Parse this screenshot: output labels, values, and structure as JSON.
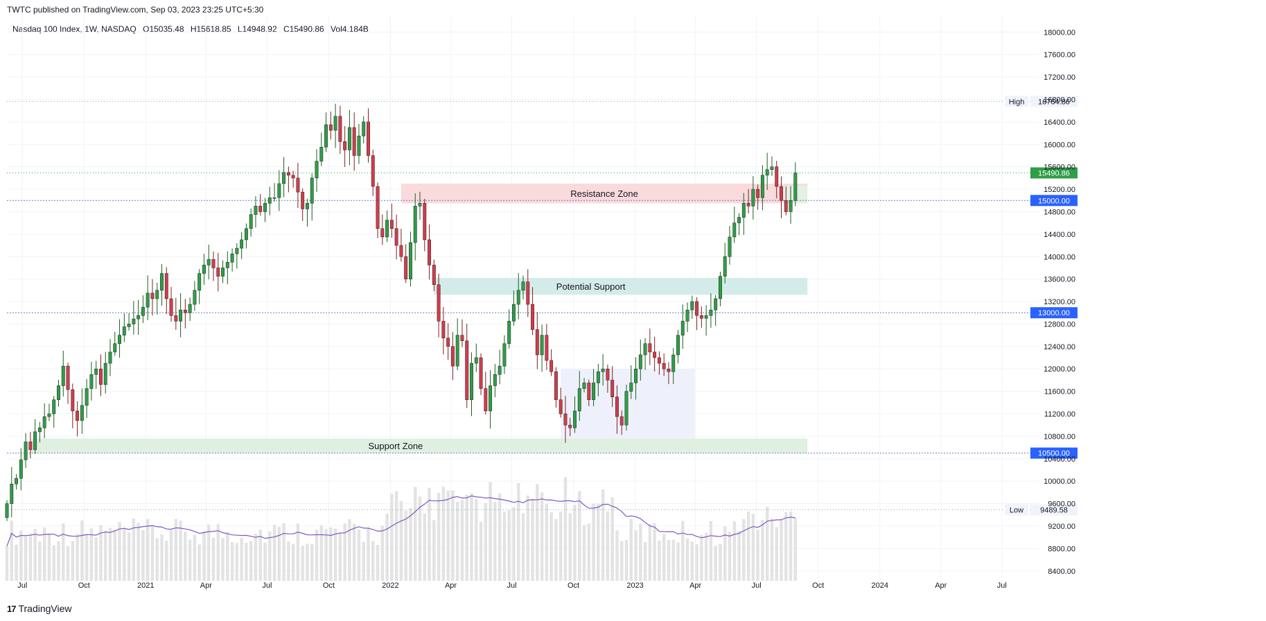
{
  "header": {
    "published": "TWTC published on TradingView.com, Sep 03, 2023 23:25 UTC+5:30"
  },
  "symbol": {
    "name": "Nasdaq 100 Index, 1W, NASDAQ",
    "open": "O15035.48",
    "high": "H15618.85",
    "low": "L14948.92",
    "close": "C15490.86",
    "volume": "Vol4.184B"
  },
  "footer": {
    "brand": "TradingView",
    "logo": "17"
  },
  "colors": {
    "up": "#2e9e47",
    "down": "#d23c4c",
    "accent": "#2962ff",
    "support_zone": "#dff0e1",
    "potential_zone": "#d4ece9",
    "resistance_zone": "#fadadd",
    "blue_zone": "#eef1fc",
    "volume": "#e3e3e3",
    "ma": "#7e57c2"
  },
  "chart_data": {
    "type": "candlestick",
    "title": "Nasdaq 100 Index, 1W, NASDAQ",
    "ylim": [
      8200,
      18300
    ],
    "y_ticks": [
      8400,
      8800,
      9200,
      9600,
      10000,
      10400,
      10800,
      11200,
      11600,
      12000,
      12400,
      12800,
      13200,
      13600,
      14000,
      14400,
      14800,
      15200,
      15600,
      16000,
      16400,
      16800,
      17200,
      17600,
      18000
    ],
    "y_tick_labels": [
      "8400.00",
      "8800.00",
      "9200.00",
      "9600.00",
      "10000.00",
      "10400.00",
      "10800.00",
      "11200.00",
      "11600.00",
      "12000.00",
      "12400.00",
      "12800.00",
      "13200.00",
      "13600.00",
      "14000.00",
      "14400.00",
      "14800.00",
      "15200.00",
      "15600.00",
      "16000.00",
      "16400.00",
      "16800.00",
      "17200.00",
      "17600.00",
      "18000.00"
    ],
    "x_range": [
      "2020-06-08",
      "2024-08-26"
    ],
    "x_ticks": [
      {
        "label": "Jul",
        "date": "2020-07-01"
      },
      {
        "label": "Oct",
        "date": "2020-10-01"
      },
      {
        "label": "2021",
        "date": "2021-01-01"
      },
      {
        "label": "Apr",
        "date": "2021-04-01"
      },
      {
        "label": "Jul",
        "date": "2021-07-01"
      },
      {
        "label": "Oct",
        "date": "2021-10-01"
      },
      {
        "label": "2022",
        "date": "2022-01-01"
      },
      {
        "label": "Apr",
        "date": "2022-04-01"
      },
      {
        "label": "Jul",
        "date": "2022-07-01"
      },
      {
        "label": "Oct",
        "date": "2022-10-01"
      },
      {
        "label": "2023",
        "date": "2023-01-01"
      },
      {
        "label": "Apr",
        "date": "2023-04-01"
      },
      {
        "label": "Jul",
        "date": "2023-07-01"
      },
      {
        "label": "Oct",
        "date": "2023-10-01"
      },
      {
        "label": "2024",
        "date": "2024-01-01"
      },
      {
        "label": "Apr",
        "date": "2024-04-01"
      },
      {
        "label": "Jul",
        "date": "2024-07-01"
      }
    ],
    "first_candle_date": "2020-06-08",
    "candle_interval_days": 7,
    "closes": [
      9600,
      9950,
      10050,
      10380,
      10700,
      10560,
      10880,
      10950,
      11150,
      11200,
      11450,
      11700,
      12050,
      11630,
      11250,
      11080,
      11350,
      11650,
      11900,
      12000,
      11720,
      12100,
      12300,
      12450,
      12600,
      12750,
      12800,
      12890,
      12950,
      13100,
      13350,
      13250,
      13400,
      13700,
      13250,
      12950,
      12850,
      13050,
      13000,
      13150,
      13400,
      13700,
      13850,
      13950,
      13800,
      13650,
      13800,
      13900,
      14050,
      14150,
      14300,
      14500,
      14750,
      14900,
      14800,
      14950,
      15050,
      15050,
      15300,
      15500,
      15450,
      15400,
      15150,
      14850,
      14950,
      15400,
      15700,
      15950,
      16350,
      16250,
      16500,
      16050,
      15900,
      16300,
      15800,
      16150,
      16400,
      15800,
      15250,
      14500,
      14350,
      14650,
      14500,
      14200,
      14000,
      13600,
      14250,
      14900,
      14950,
      14300,
      13850,
      13500,
      12850,
      12550,
      12400,
      12050,
      12600,
      12500,
      11450,
      12100,
      12200,
      11650,
      11250,
      11700,
      11900,
      12050,
      12450,
      12850,
      13150,
      13400,
      13550,
      13150,
      12700,
      12250,
      12600,
      12150,
      11950,
      11450,
      11200,
      11000,
      10950,
      11250,
      11650,
      11750,
      11450,
      11750,
      11950,
      12000,
      11800,
      11500,
      11150,
      11000,
      11600,
      11750,
      12000,
      12250,
      12450,
      12300,
      12200,
      12100,
      12000,
      11950,
      12250,
      12600,
      12850,
      13050,
      13200,
      12950,
      12900,
      12950,
      13050,
      13250,
      13650,
      14000,
      14350,
      14600,
      14700,
      14950,
      14900,
      15200,
      15050,
      15450,
      15550,
      15600,
      15250,
      15000,
      14800,
      15000,
      15490
    ]
  },
  "annotations": {
    "zones": [
      {
        "label": "Resistance Zone",
        "y_low": 14950,
        "y_high": 15300,
        "x_start": "2022-01-17",
        "x_end": "2023-09-15",
        "color": "resistance_zone"
      },
      {
        "label": "Potential Support",
        "y_low": 13320,
        "y_high": 13620,
        "x_start": "2022-03-07",
        "x_end": "2023-09-15",
        "color": "potential_zone"
      },
      {
        "label": "Support Zone",
        "y_low": 10500,
        "y_high": 10760,
        "x_start": "2020-07-13",
        "x_end": "2023-09-15",
        "color": "support_zone"
      }
    ],
    "small_green_box": {
      "y_low": 14950,
      "y_high": 15260,
      "x_start": "2023-08-07",
      "x_end": "2023-09-15"
    },
    "blue_box": {
      "y_low": 10760,
      "y_high": 12000,
      "x_start": "2022-09-12",
      "x_end": "2023-03-31"
    },
    "horizontal_lines": [
      {
        "value": 16764.86,
        "label": "High",
        "price": "16764.86",
        "style": "dotted"
      },
      {
        "value": 15490.86,
        "price": "15490.86",
        "style": "close"
      },
      {
        "value": 15000,
        "price": "15000.00",
        "style": "blue"
      },
      {
        "value": 13000,
        "price": "13000.00",
        "style": "blue"
      },
      {
        "value": 10500,
        "price": "10500.00",
        "style": "blue"
      },
      {
        "value": 9489.58,
        "label": "Low",
        "price": "9489.58",
        "style": "dotted"
      }
    ]
  }
}
